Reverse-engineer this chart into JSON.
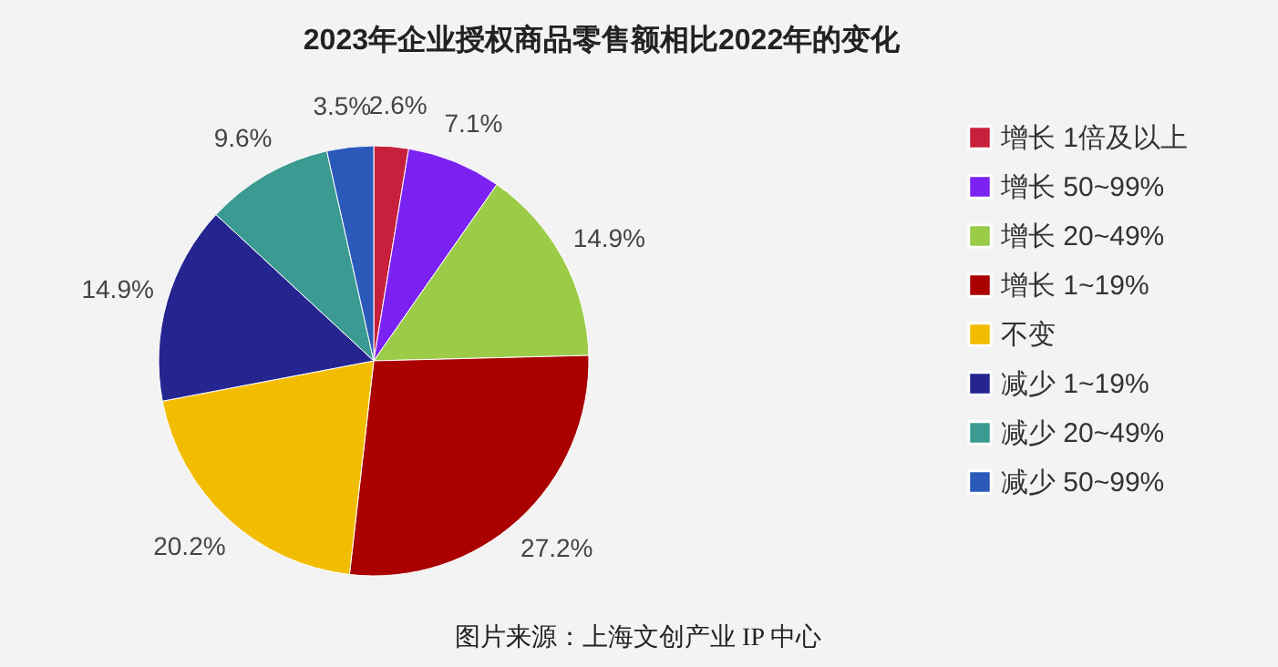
{
  "chart_data": {
    "type": "pie",
    "title": "2023年企业授权商品零售额相比2022年的变化",
    "categories": [
      "增长 1倍及以上",
      "增长 50~99%",
      "增长 20~49%",
      "增长 1~19%",
      "不变",
      "减少 1~19%",
      "减少 20~49%",
      "减少 50~99%"
    ],
    "values": [
      2.6,
      7.1,
      14.9,
      27.2,
      20.2,
      14.9,
      9.6,
      3.5
    ],
    "colors": [
      "#c8203c",
      "#7b22f2",
      "#9ccb48",
      "#aa0000",
      "#f2bd00",
      "#252590",
      "#3b9a91",
      "#2a59ba"
    ],
    "value_labels": [
      "2.6%",
      "7.1%",
      "14.9%",
      "27.2%",
      "20.2%",
      "14.9%",
      "9.6%",
      "3.5%"
    ],
    "legend": "right",
    "annotations": [
      "图片来源：上海文创产业 IP 中心"
    ]
  }
}
